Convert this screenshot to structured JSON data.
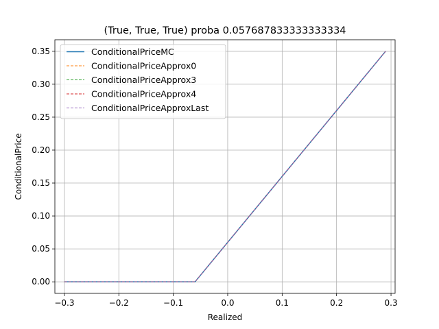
{
  "chart_data": {
    "type": "line",
    "title": "(True, True, True) proba 0.057687833333333334",
    "xlabel": "Realized",
    "ylabel": "ConditionalPrice",
    "xlim": [
      -0.3175,
      0.3075
    ],
    "ylim": [
      -0.0175,
      0.3675
    ],
    "xticks": [
      -0.3,
      -0.2,
      -0.1,
      0.0,
      0.1,
      0.2,
      0.3
    ],
    "xtick_labels": [
      "−0.3",
      "−0.2",
      "−0.1",
      "0.0",
      "0.1",
      "0.2",
      "0.3"
    ],
    "yticks": [
      0.0,
      0.05,
      0.1,
      0.15,
      0.2,
      0.25,
      0.3,
      0.35
    ],
    "ytick_labels": [
      "0.00",
      "0.05",
      "0.10",
      "0.15",
      "0.20",
      "0.25",
      "0.30",
      "0.35"
    ],
    "grid": true,
    "legend_position": "top-left",
    "series": [
      {
        "name": "ConditionalPriceMC",
        "color": "#1f77b4",
        "style": "solid",
        "x": [
          -0.3,
          -0.06,
          0.29
        ],
        "y": [
          0.0,
          0.0,
          0.35
        ]
      },
      {
        "name": "ConditionalPriceApprox0",
        "color": "#ff7f0e",
        "style": "dashed",
        "x": [
          -0.3,
          -0.06,
          0.29
        ],
        "y": [
          0.0,
          0.0,
          0.35
        ]
      },
      {
        "name": "ConditionalPriceApprox3",
        "color": "#2ca02c",
        "style": "dashed",
        "x": [
          -0.3,
          -0.06,
          0.29
        ],
        "y": [
          0.0,
          0.0,
          0.35
        ]
      },
      {
        "name": "ConditionalPriceApprox4",
        "color": "#d62728",
        "style": "dashed",
        "x": [
          -0.3,
          -0.06,
          0.29
        ],
        "y": [
          0.0,
          0.0,
          0.35
        ]
      },
      {
        "name": "ConditionalPriceApproxLast",
        "color": "#9467bd",
        "style": "dashed",
        "x": [
          -0.3,
          -0.06,
          0.29
        ],
        "y": [
          0.0,
          0.0,
          0.35
        ]
      }
    ]
  }
}
